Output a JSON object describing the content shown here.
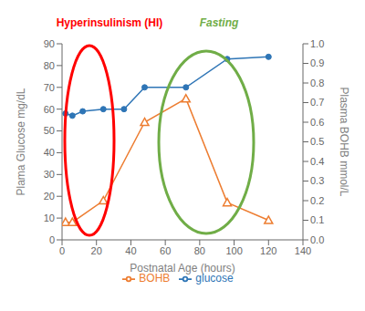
{
  "chart_data": {
    "type": "line",
    "x_label": "Postnatal Age (hours)",
    "y_label": "Plama Glucose mg/dL",
    "y2_label": "Plasma BOHB mmol/L",
    "xlim": [
      0,
      140
    ],
    "xticks": [
      0,
      20,
      40,
      60,
      80,
      100,
      120,
      140
    ],
    "ylim": [
      0,
      90
    ],
    "yticks": [
      0,
      10,
      20,
      30,
      40,
      50,
      60,
      70,
      80,
      90
    ],
    "y2lim": [
      0,
      1
    ],
    "y2ticks": [
      {
        "value": 0,
        "label": "0.0"
      },
      0.1,
      0.2,
      0.3,
      0.4,
      0.5,
      0.6,
      0.7,
      0.8,
      0.9,
      {
        "value": 1,
        "label": "1.0"
      }
    ],
    "grid": false,
    "legend": "bottom",
    "series": [
      {
        "name": "glucose",
        "color": "#2e75b6",
        "marker": "circle",
        "x": [
          2,
          6,
          12,
          24,
          36,
          48,
          72,
          96,
          120
        ],
        "values": [
          58,
          57,
          59,
          60,
          60,
          70,
          70,
          83,
          84
        ]
      },
      {
        "name": "BOHB",
        "color": "#ed7d31",
        "marker": "triangle",
        "axis": "y2",
        "x": [
          2,
          6,
          24,
          48,
          72,
          96,
          120
        ],
        "values": [
          0.09,
          0.09,
          0.2,
          0.6,
          0.72,
          0.19,
          0.1
        ]
      }
    ],
    "annotations": [
      {
        "text": "Hyperinsulinism (HI)",
        "color": "red"
      },
      {
        "text": "Fasting",
        "color": "#70ad47"
      }
    ]
  }
}
